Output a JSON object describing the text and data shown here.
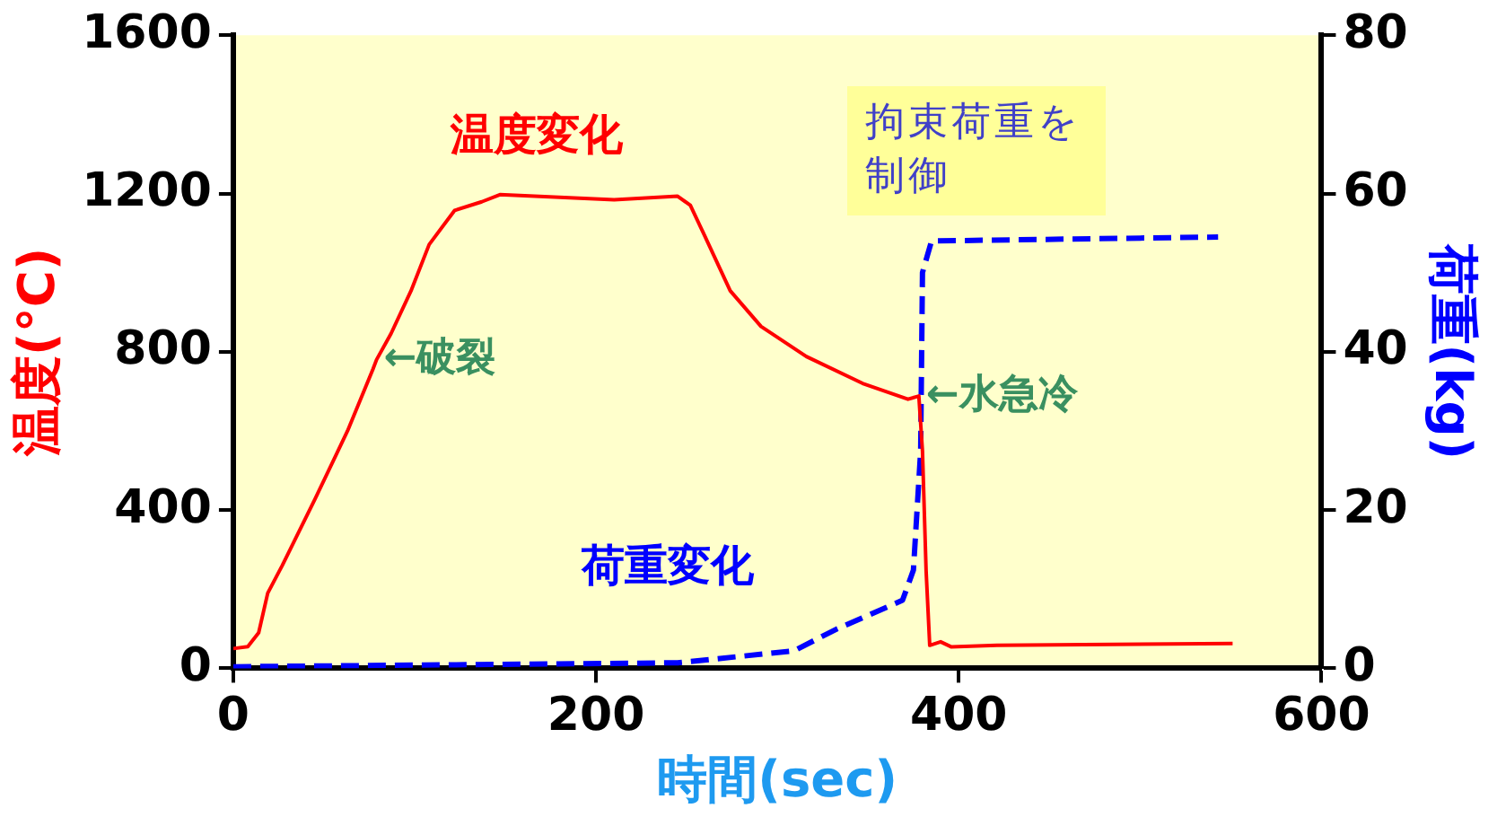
{
  "chart_data": {
    "type": "line",
    "xlabel": "時間(sec)",
    "ylabel": "温度(°C)",
    "y2label": "荷重(kg)",
    "xlim": [
      0,
      600
    ],
    "xticks": [
      0,
      200,
      400,
      600
    ],
    "ylim": [
      0,
      1600
    ],
    "yticks": [
      0,
      400,
      800,
      1200,
      1600
    ],
    "y2lim": [
      0,
      80
    ],
    "y2ticks": [
      0,
      20,
      40,
      60,
      80
    ],
    "grid": false,
    "legend": false,
    "marker": "none",
    "series": [
      {
        "name": "温度変化",
        "color": "#ff0000",
        "line_style": "solid",
        "x": [
          0,
          8,
          14,
          19,
          27,
          45,
          63,
          77,
          79,
          87,
          98,
          108,
          122,
          137,
          147,
          210,
          245,
          252,
          259,
          274,
          291,
          316,
          347,
          372,
          378,
          380,
          382,
          384,
          390,
          396,
          421,
          551
        ],
        "values": [
          50,
          55,
          90,
          190,
          260,
          427,
          600,
          756,
          780,
          846,
          954,
          1071,
          1157,
          1179,
          1197,
          1184,
          1193,
          1170,
          1102,
          954,
          864,
          788,
          720,
          680,
          688,
          549,
          247,
          58,
          67,
          54,
          58,
          63
        ]
      },
      {
        "name": "荷重変化",
        "color": "#0000ff",
        "line_style": "dashed",
        "axis": "y2",
        "x": [
          0,
          245,
          309,
          333,
          369,
          375,
          379,
          380,
          385,
          543
        ],
        "values": [
          0.2,
          0.7,
          2.2,
          5.0,
          8.6,
          12.4,
          27.5,
          50,
          54,
          54.5
        ]
      }
    ],
    "annotations": [
      {
        "text": "←破裂",
        "x": 79,
        "y": 780
      },
      {
        "text": "←水急冷",
        "x": 378,
        "y": 688
      },
      "拘束荷重を制御"
    ]
  }
}
